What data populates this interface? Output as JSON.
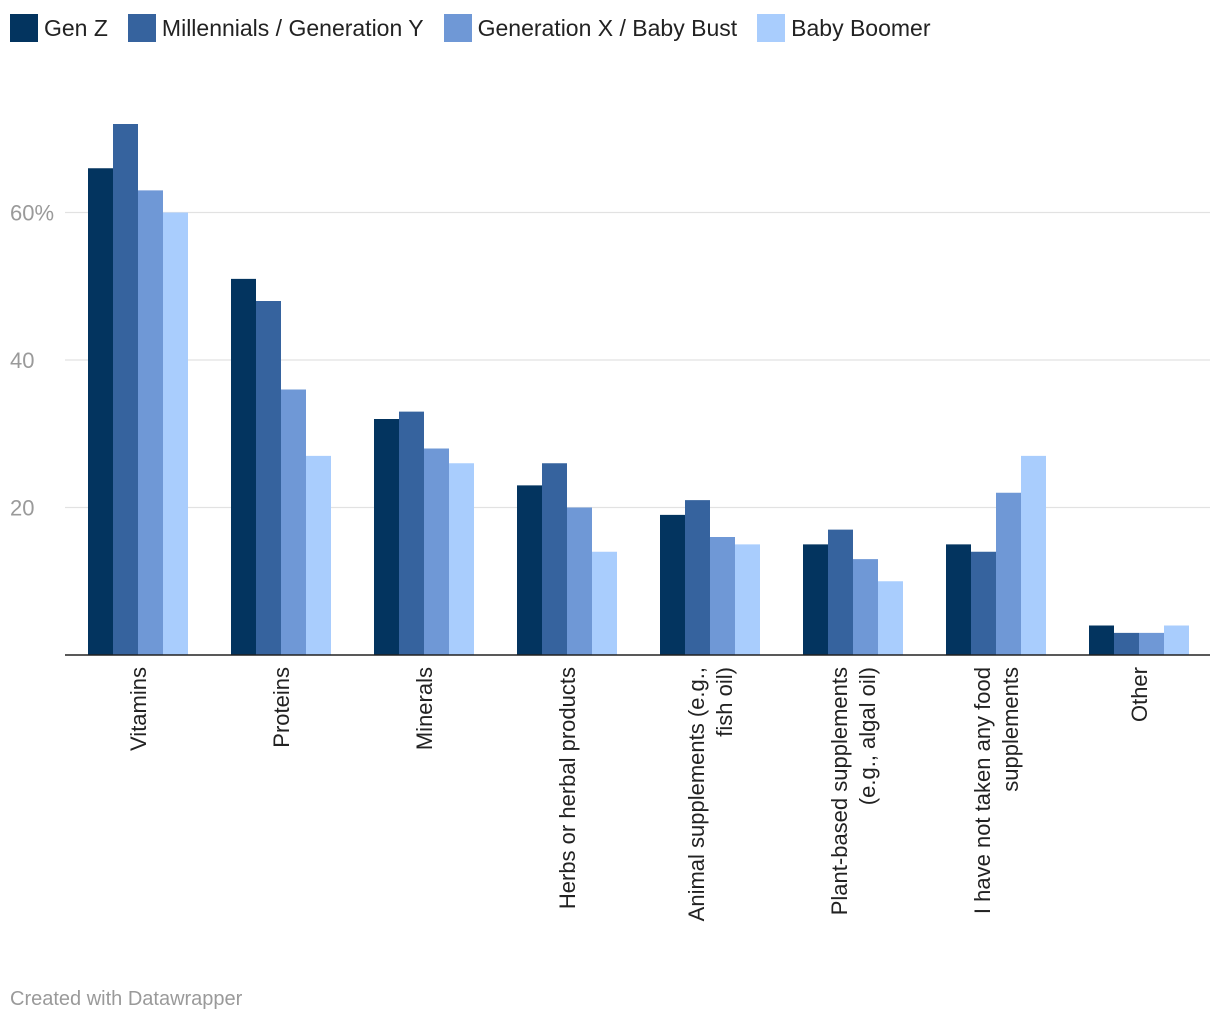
{
  "chart_data": {
    "type": "bar",
    "title": "",
    "xlabel": "",
    "ylabel": "",
    "ylim": [
      0,
      70
    ],
    "yticks": [
      {
        "value": 20,
        "label": "20"
      },
      {
        "value": 40,
        "label": "40"
      },
      {
        "value": 60,
        "label": "60%"
      }
    ],
    "grid": true,
    "legend_position": "top-left",
    "categories": [
      [
        "Vitamins"
      ],
      [
        "Proteins"
      ],
      [
        "Minerals"
      ],
      [
        "Herbs or herbal products"
      ],
      [
        "Animal supplements (e.g.,",
        "fish oil)"
      ],
      [
        "Plant-based supplements",
        "(e.g., algal oil)"
      ],
      [
        "I have not taken any food",
        "supplements"
      ],
      [
        "Other"
      ]
    ],
    "series": [
      {
        "name": "Gen Z",
        "color": "#03345f",
        "values": [
          66,
          51,
          32,
          23,
          19,
          15,
          15,
          4
        ]
      },
      {
        "name": "Millennials / Generation Y",
        "color": "#36639e",
        "values": [
          72,
          48,
          33,
          26,
          21,
          17,
          14,
          3
        ]
      },
      {
        "name": "Generation X / Baby Bust",
        "color": "#6f98d6",
        "values": [
          63,
          36,
          28,
          20,
          16,
          13,
          22,
          3
        ]
      },
      {
        "name": "Baby Boomer",
        "color": "#a9cdfd",
        "values": [
          60,
          27,
          26,
          14,
          15,
          10,
          27,
          4
        ]
      }
    ]
  },
  "footer": {
    "credit": "Created with Datawrapper"
  }
}
